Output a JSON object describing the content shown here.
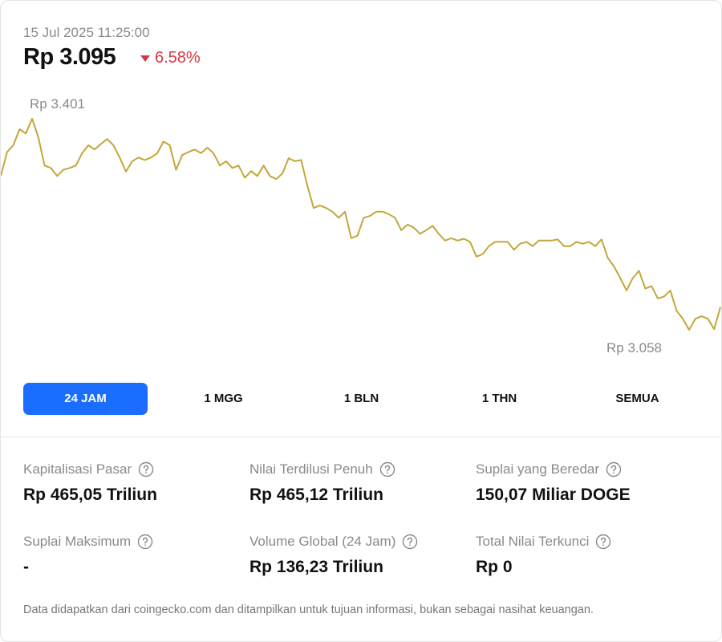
{
  "header": {
    "timestamp": "15 Jul 2025 11:25:00",
    "price": "Rp 3.095",
    "change": "6.58%"
  },
  "chart_data": {
    "type": "line",
    "color": "#c4a63b",
    "values": [
      3308,
      3347,
      3358,
      3384,
      3377,
      3401,
      3371,
      3325,
      3321,
      3308,
      3318,
      3321,
      3325,
      3345,
      3358,
      3351,
      3360,
      3368,
      3358,
      3338,
      3315,
      3332,
      3338,
      3334,
      3338,
      3345,
      3364,
      3358,
      3318,
      3342,
      3347,
      3351,
      3345,
      3354,
      3345,
      3325,
      3332,
      3321,
      3325,
      3305,
      3316,
      3308,
      3325,
      3308,
      3303,
      3312,
      3337,
      3332,
      3334,
      3292,
      3256,
      3260,
      3256,
      3250,
      3240,
      3250,
      3207,
      3211,
      3240,
      3243,
      3250,
      3250,
      3246,
      3240,
      3220,
      3229,
      3224,
      3214,
      3220,
      3227,
      3214,
      3203,
      3207,
      3203,
      3206,
      3201,
      3177,
      3181,
      3194,
      3201,
      3201,
      3201,
      3188,
      3198,
      3201,
      3194,
      3203,
      3203,
      3203,
      3205,
      3194,
      3194,
      3201,
      3198,
      3201,
      3194,
      3205,
      3175,
      3161,
      3142,
      3122,
      3142,
      3154,
      3125,
      3129,
      3109,
      3112,
      3122,
      3089,
      3076,
      3058,
      3076,
      3080,
      3076,
      3059,
      3095
    ],
    "annotations": [
      {
        "value": 3401,
        "label": "Rp 3.401"
      },
      {
        "value": 3058,
        "label": "Rp 3.058"
      }
    ]
  },
  "tabs": {
    "items": [
      "24 JAM",
      "1 MGG",
      "1 BLN",
      "1 THN",
      "SEMUA"
    ],
    "active": 0
  },
  "stats": [
    {
      "label": "Kapitalisasi Pasar",
      "value": "Rp 465,05 Triliun"
    },
    {
      "label": "Nilai Terdilusi Penuh",
      "value": "Rp 465,12 Triliun"
    },
    {
      "label": "Suplai yang Beredar",
      "value": "150,07 Miliar DOGE"
    },
    {
      "label": "Suplai Maksimum",
      "value": "-"
    },
    {
      "label": "Volume Global (24 Jam)",
      "value": "Rp 136,23 Triliun"
    },
    {
      "label": "Total Nilai Terkunci",
      "value": "Rp 0"
    }
  ],
  "footer": "Data didapatkan dari coingecko.com dan ditampilkan untuk tujuan informasi, bukan sebagai nasihat keuangan."
}
